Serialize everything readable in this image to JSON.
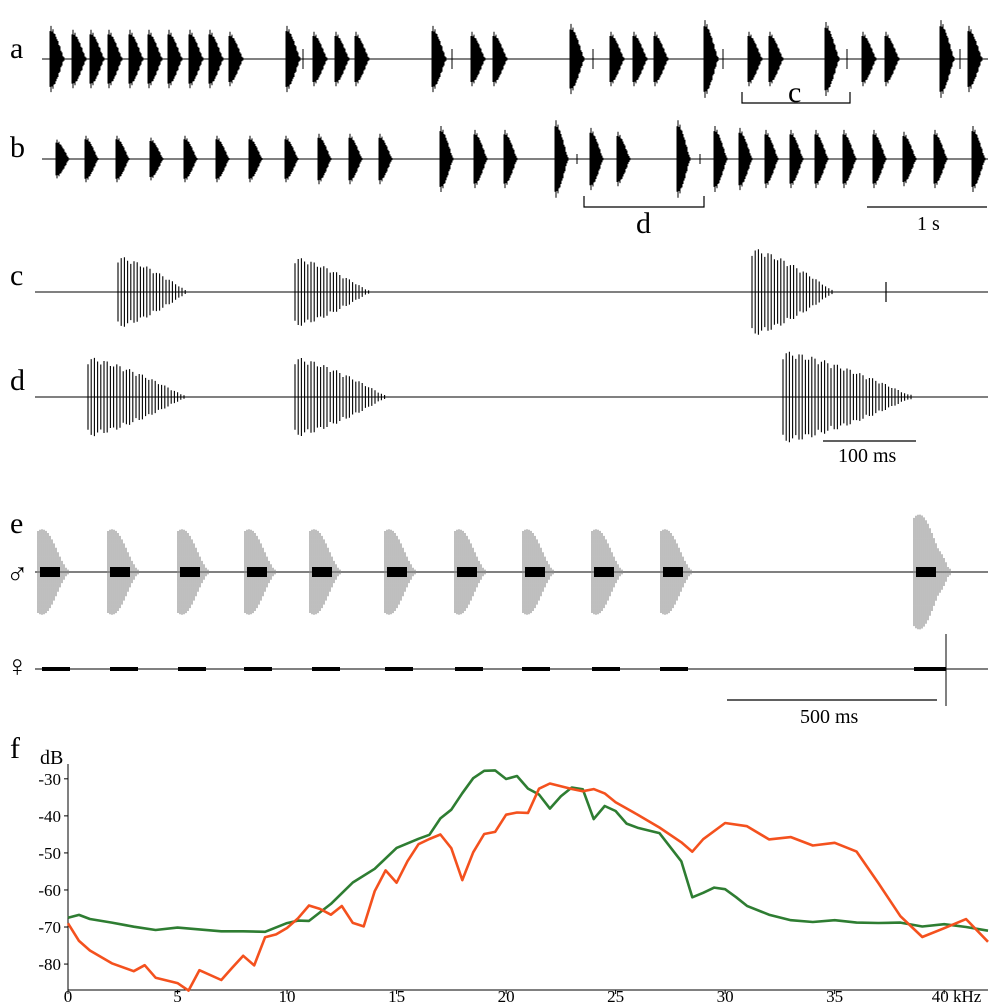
{
  "figure": {
    "panel_labels": {
      "a": "a",
      "b": "b",
      "c": "c",
      "d": "d",
      "e": "e",
      "f": "f"
    },
    "bracket_labels": {
      "c": "c",
      "d": "d"
    },
    "scalebars": {
      "one_second": "1 s",
      "hundred_ms": "100 ms",
      "five_hundred_ms": "500 ms"
    },
    "sex_symbols": {
      "male": "♂",
      "female": "♀"
    },
    "colors": {
      "waveform": "#000000",
      "male_waveform": "#8a8a8a",
      "series_green": "#2e7d32",
      "series_red": "#f4511e"
    }
  },
  "chart_data": {
    "type": "line",
    "xlabel": "kHz",
    "ylabel": "dB",
    "xlim": [
      0,
      42
    ],
    "ylim": [
      -87,
      -26
    ],
    "x_ticks": [
      "0",
      "5",
      "10",
      "15",
      "20",
      "25",
      "30",
      "35",
      "40"
    ],
    "y_ticks": [
      "-30",
      "-40",
      "-50",
      "-60",
      "-70",
      "-80"
    ],
    "grid": false,
    "series": [
      {
        "color": "#2e7d32",
        "x": [
          0,
          0.5,
          1,
          2,
          3,
          4,
          5,
          6,
          7,
          8,
          9,
          10,
          10.5,
          11,
          12,
          13,
          14,
          15,
          16,
          16.5,
          17,
          17.5,
          18,
          18.5,
          19,
          19.5,
          20,
          20.5,
          21,
          21.5,
          22,
          22.5,
          23,
          23.5,
          24,
          24.5,
          25,
          25.5,
          26,
          27,
          28,
          28.5,
          29,
          29.5,
          30,
          30.5,
          31,
          32,
          33,
          34,
          35,
          36,
          37,
          38,
          39,
          40,
          41,
          42
        ],
        "y": [
          -67.5,
          -67,
          -67.5,
          -69,
          -70,
          -70.5,
          -70.5,
          -70.5,
          -71,
          -71.5,
          -71,
          -69,
          -68.5,
          -68,
          -64,
          -58,
          -54,
          -49,
          -46,
          -45,
          -41,
          -38,
          -34,
          -30,
          -27.5,
          -28,
          -30,
          -29,
          -33,
          -34,
          -38,
          -35,
          -32,
          -33,
          -41,
          -37,
          -39,
          -42,
          -43,
          -45,
          -52,
          -62,
          -61,
          -59,
          -60,
          -62,
          -64,
          -67,
          -68,
          -68.5,
          -68.5,
          -68.5,
          -69,
          -69,
          -69.5,
          -69.5,
          -70,
          -71
        ]
      },
      {
        "color": "#f4511e",
        "x": [
          0,
          0.5,
          1,
          2,
          3,
          3.5,
          4,
          5,
          5.5,
          6,
          7,
          7.5,
          8,
          8.5,
          9,
          9.5,
          10,
          10.5,
          11,
          11.5,
          12,
          12.5,
          13,
          13.5,
          14,
          14.5,
          15,
          15.5,
          16,
          16.5,
          17,
          17.5,
          18,
          18.5,
          19,
          19.5,
          20,
          20.5,
          21,
          21.5,
          22,
          22.5,
          23,
          23.5,
          24,
          24.5,
          25,
          26,
          27,
          28,
          28.5,
          29,
          30,
          31,
          32,
          33,
          34,
          35,
          36,
          37,
          38,
          39,
          40,
          41,
          42
        ],
        "y": [
          -69,
          -74,
          -76,
          -80,
          -82,
          -80,
          -84,
          -85,
          -87,
          -82,
          -84,
          -81,
          -78,
          -80,
          -73,
          -72,
          -70,
          -68,
          -64,
          -65,
          -67,
          -64,
          -69,
          -70,
          -60,
          -55,
          -58,
          -52,
          -48,
          -46,
          -45,
          -49,
          -57,
          -50,
          -45,
          -44,
          -40,
          -39,
          -39,
          -33,
          -31,
          -32,
          -33,
          -33,
          -33,
          -34,
          -36,
          -40,
          -43,
          -47,
          -50,
          -46,
          -42,
          -43,
          -46,
          -46,
          -48,
          -47,
          -50,
          -58,
          -67,
          -73,
          -70,
          -68,
          -74
        ]
      }
    ]
  }
}
